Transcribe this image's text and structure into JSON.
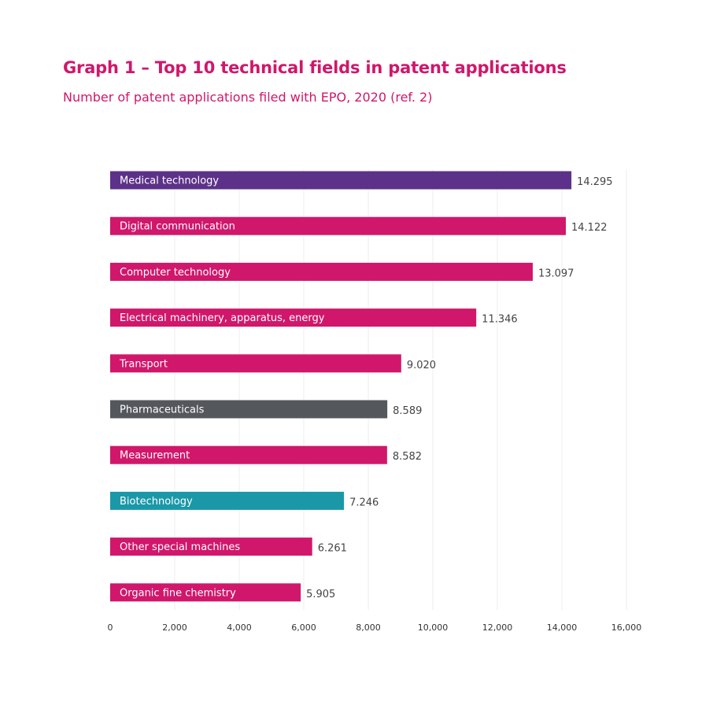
{
  "header": {
    "title": "Graph 1 – Top 10 technical fields in patent applications",
    "subtitle": "Number of patent applications filed with EPO, 2020 (ref. 2)"
  },
  "chart_data": {
    "type": "bar",
    "orientation": "horizontal",
    "title": "Graph 1 – Top 10 technical fields in patent applications",
    "subtitle": "Number of patent applications filed with EPO, 2020 (ref. 2)",
    "xlabel": "",
    "ylabel": "",
    "xlim": [
      0,
      16000
    ],
    "grid": true,
    "legend": "none",
    "categories": [
      "Medical technology",
      "Digital communication",
      "Computer technology",
      "Electrical machinery, apparatus, energy",
      "Transport",
      "Pharmaceuticals",
      "Measurement",
      "Biotechnology",
      "Other special machines",
      "Organic fine chemistry"
    ],
    "values": [
      14295,
      14122,
      13097,
      11346,
      9020,
      8589,
      8582,
      7246,
      6261,
      5905
    ],
    "value_labels": [
      "14.295",
      "14.122",
      "13.097",
      "11.346",
      "9.020",
      "8.589",
      "8.582",
      "7.246",
      "6.261",
      "5.905"
    ],
    "colors": [
      "#5c3189",
      "#d0176b",
      "#d0176b",
      "#d0176b",
      "#d0176b",
      "#54575c",
      "#d0176b",
      "#1a98a8",
      "#d0176b",
      "#d0176b"
    ],
    "ticks": [
      0,
      2000,
      4000,
      6000,
      8000,
      10000,
      12000,
      14000,
      16000
    ],
    "tick_labels": [
      "0",
      "2,000",
      "4,000",
      "6,000",
      "8,000",
      "10,000",
      "12,000",
      "14,000",
      "16,000"
    ]
  },
  "style": {
    "accent": "#d0176b",
    "grid_color": "#ececec"
  }
}
